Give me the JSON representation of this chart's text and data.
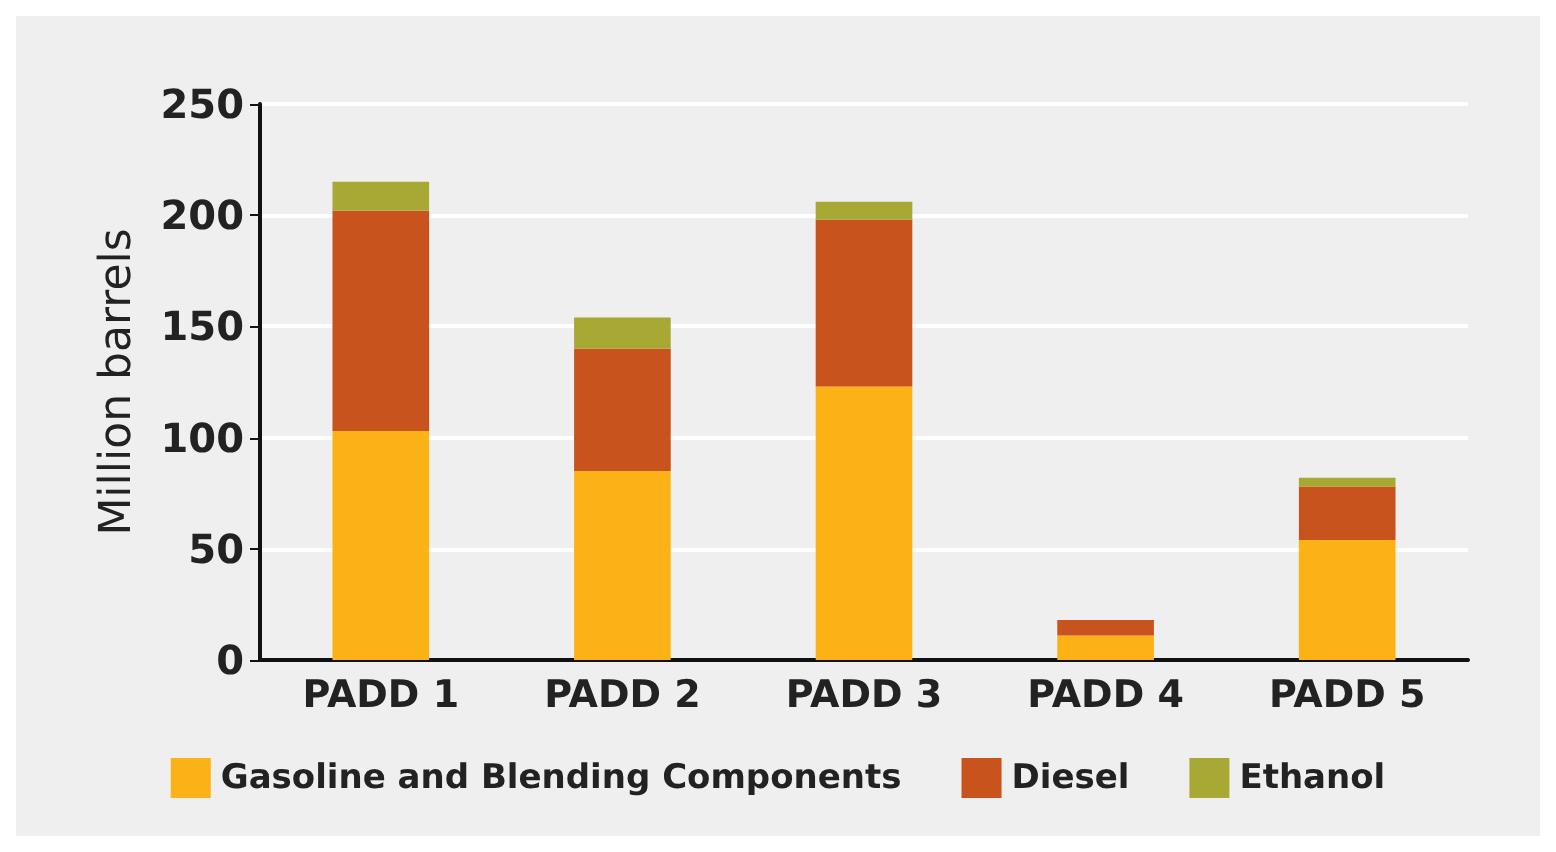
{
  "chart_data": {
    "type": "bar",
    "stacked": true,
    "ylabel": "Million barrels",
    "categories": [
      "PADD 1",
      "PADD 2",
      "PADD 3",
      "PADD 4",
      "PADD 5"
    ],
    "series": [
      {
        "name": "Gasoline and Blending Components",
        "color": "#fbb217",
        "values": [
          103,
          85,
          123,
          11,
          54
        ]
      },
      {
        "name": "Diesel",
        "color": "#c9531d",
        "values": [
          99,
          55,
          75,
          7,
          24
        ]
      },
      {
        "name": "Ethanol",
        "color": "#a8a834",
        "values": [
          13,
          14,
          8,
          0,
          4
        ]
      }
    ],
    "ylim": [
      0,
      250
    ],
    "yticks": [
      0,
      50,
      100,
      150,
      200,
      250
    ],
    "grid": "y",
    "legend": "bottom"
  }
}
